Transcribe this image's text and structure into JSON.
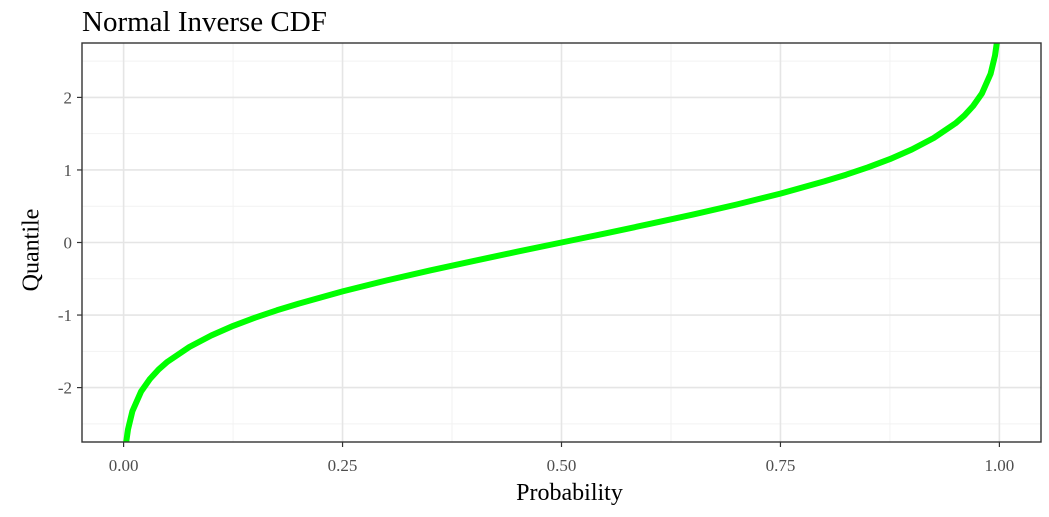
{
  "chart_data": {
    "type": "line",
    "title": "Normal Inverse CDF",
    "xlabel": "Probability",
    "ylabel": "Quantile",
    "xlim": [
      -0.0475,
      1.0475
    ],
    "ylim": [
      -2.75,
      2.75
    ],
    "x_ticks": [
      0.0,
      0.25,
      0.5,
      0.75,
      1.0
    ],
    "x_tick_labels": [
      "0.00",
      "0.25",
      "0.50",
      "0.75",
      "1.00"
    ],
    "y_ticks": [
      -2,
      -1,
      0,
      1,
      2
    ],
    "y_tick_labels": [
      "-2",
      "-1",
      "0",
      "1",
      "2"
    ],
    "grid": true,
    "legend": "none",
    "series": [
      {
        "color": "#00ff00",
        "x": [
          0.003,
          0.005,
          0.01,
          0.02,
          0.03,
          0.04,
          0.05,
          0.075,
          0.1,
          0.125,
          0.15,
          0.175,
          0.2,
          0.25,
          0.3,
          0.35,
          0.4,
          0.45,
          0.5,
          0.55,
          0.6,
          0.65,
          0.7,
          0.75,
          0.8,
          0.825,
          0.85,
          0.875,
          0.9,
          0.925,
          0.95,
          0.96,
          0.97,
          0.98,
          0.99,
          0.995,
          0.997
        ],
        "y": [
          -2.748,
          -2.576,
          -2.326,
          -2.054,
          -1.881,
          -1.751,
          -1.645,
          -1.44,
          -1.282,
          -1.15,
          -1.036,
          -0.935,
          -0.842,
          -0.674,
          -0.524,
          -0.385,
          -0.253,
          -0.126,
          0.0,
          0.126,
          0.253,
          0.385,
          0.524,
          0.674,
          0.842,
          0.935,
          1.036,
          1.15,
          1.282,
          1.44,
          1.645,
          1.751,
          1.881,
          2.054,
          2.326,
          2.576,
          2.748
        ]
      }
    ]
  }
}
